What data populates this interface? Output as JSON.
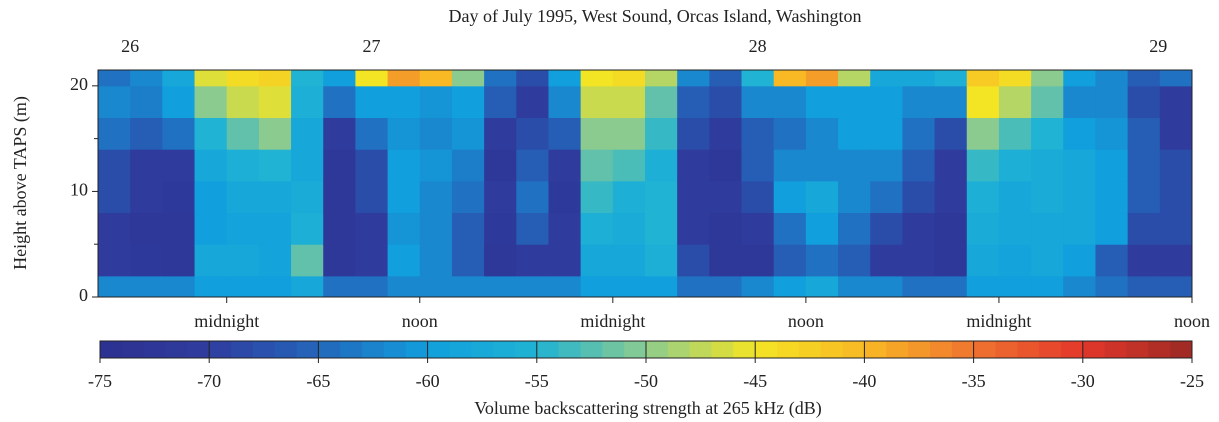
{
  "chart_data": {
    "type": "heatmap",
    "title": "Day of July 1995, West Sound, Orcas Island, Washington",
    "y_label": "Height above TAPS (m)",
    "colorbar_label": "Volume backscattering strength at 265 kHz (dB)",
    "xlim": [
      16,
      84
    ],
    "ylim": [
      0,
      21.5
    ],
    "xticks": [
      {
        "value": 24,
        "label": "midnight"
      },
      {
        "value": 36,
        "label": "noon"
      },
      {
        "value": 48,
        "label": "midnight"
      },
      {
        "value": 60,
        "label": "noon"
      },
      {
        "value": 72,
        "label": "midnight"
      },
      {
        "value": 84,
        "label": "noon"
      }
    ],
    "x2ticks": [
      {
        "value": 18,
        "label": "26"
      },
      {
        "value": 33,
        "label": "27"
      },
      {
        "value": 57,
        "label": "28"
      },
      {
        "value": 81.9,
        "label": "29"
      }
    ],
    "yticks": [
      0,
      10,
      20
    ],
    "minor_yticks": [
      5,
      15
    ],
    "zlim": [
      -75,
      -25
    ],
    "zticks": [
      -75,
      -70,
      -65,
      -60,
      -55,
      -50,
      -45,
      -40,
      -35,
      -30,
      -25
    ],
    "colormap": [
      "#2c3190",
      "#2f3c9e",
      "#2466bb",
      "#119fdd",
      "#20b3d3",
      "#8ccb8f",
      "#f3e424",
      "#f9b924",
      "#ef7430",
      "#e3372c",
      "#9c2a24"
    ],
    "xbins": [
      16,
      18,
      20,
      22,
      24,
      26,
      28,
      30,
      32,
      34,
      36,
      38,
      40,
      42,
      44,
      46,
      48,
      50,
      52,
      54,
      56,
      58,
      60,
      62,
      64,
      66,
      68,
      70,
      72,
      74,
      76,
      78,
      80,
      82,
      84
    ],
    "ybins": [
      0,
      2,
      5,
      8,
      11,
      14,
      17,
      20,
      21.5
    ],
    "values": [
      [
        -62,
        -70,
        -70,
        -68,
        -68,
        -64,
        -62,
        -64
      ],
      [
        -62,
        -71,
        -72,
        -70,
        -70,
        -66,
        -63,
        -62
      ],
      [
        -62,
        -72,
        -72,
        -71,
        -70,
        -64,
        -60,
        -58
      ],
      [
        -60,
        -58,
        -60,
        -60,
        -58,
        -55,
        -50,
        -46
      ],
      [
        -60,
        -58,
        -59,
        -58,
        -56,
        -52,
        -47,
        -44
      ],
      [
        -60,
        -59,
        -59,
        -58,
        -55,
        -50,
        -46,
        -43
      ],
      [
        -58,
        -52,
        -56,
        -57,
        -58,
        -58,
        -56,
        -55
      ],
      [
        -64,
        -72,
        -72,
        -72,
        -72,
        -70,
        -64,
        -60
      ],
      [
        -64,
        -70,
        -70,
        -68,
        -68,
        -64,
        -60,
        -45
      ],
      [
        -62,
        -60,
        -61,
        -60,
        -60,
        -61,
        -60,
        -38
      ],
      [
        -62,
        -62,
        -62,
        -62,
        -61,
        -62,
        -61,
        -40
      ],
      [
        -62,
        -66,
        -66,
        -64,
        -63,
        -61,
        -60,
        -50
      ],
      [
        -62,
        -72,
        -71,
        -70,
        -72,
        -70,
        -66,
        -64
      ],
      [
        -62,
        -70,
        -66,
        -64,
        -66,
        -68,
        -70,
        -68
      ],
      [
        -62,
        -70,
        -70,
        -71,
        -70,
        -66,
        -62,
        -60
      ],
      [
        -60,
        -58,
        -56,
        -54,
        -52,
        -50,
        -47,
        -45
      ],
      [
        -60,
        -58,
        -57,
        -56,
        -53,
        -50,
        -47,
        -44
      ],
      [
        -60,
        -56,
        -55,
        -55,
        -56,
        -54,
        -52,
        -48
      ],
      [
        -64,
        -68,
        -70,
        -70,
        -70,
        -68,
        -66,
        -62
      ],
      [
        -64,
        -72,
        -72,
        -70,
        -72,
        -70,
        -68,
        -66
      ],
      [
        -62,
        -72,
        -70,
        -68,
        -66,
        -66,
        -62,
        -55
      ],
      [
        -60,
        -66,
        -64,
        -60,
        -62,
        -64,
        -62,
        -40
      ],
      [
        -58,
        -64,
        -60,
        -58,
        -62,
        -62,
        -60,
        -38
      ],
      [
        -62,
        -66,
        -64,
        -62,
        -62,
        -60,
        -60,
        -48
      ],
      [
        -62,
        -70,
        -68,
        -64,
        -62,
        -60,
        -60,
        -58
      ],
      [
        -64,
        -70,
        -70,
        -68,
        -66,
        -64,
        -62,
        -58
      ],
      [
        -64,
        -72,
        -72,
        -70,
        -70,
        -68,
        -62,
        -56
      ],
      [
        -60,
        -58,
        -57,
        -56,
        -54,
        -50,
        -45,
        -42
      ],
      [
        -60,
        -59,
        -58,
        -58,
        -56,
        -53,
        -48,
        -44
      ],
      [
        -60,
        -58,
        -58,
        -57,
        -57,
        -55,
        -52,
        -50
      ],
      [
        -62,
        -60,
        -58,
        -58,
        -58,
        -60,
        -62,
        -60
      ],
      [
        -64,
        -66,
        -60,
        -60,
        -60,
        -61,
        -62,
        -62
      ],
      [
        -66,
        -70,
        -68,
        -66,
        -66,
        -66,
        -68,
        -66
      ],
      [
        -66,
        -70,
        -68,
        -68,
        -68,
        -70,
        -70,
        -64
      ]
    ]
  }
}
